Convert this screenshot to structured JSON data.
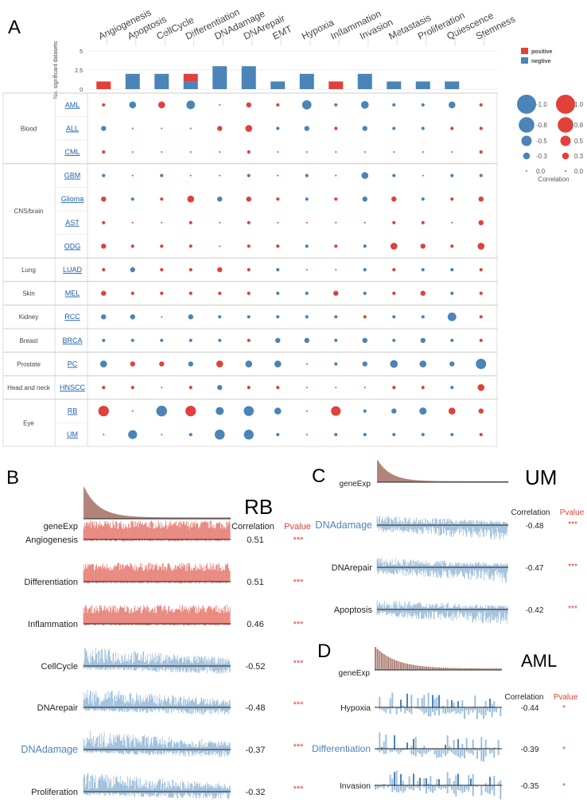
{
  "panel_letters": {
    "A": "A",
    "B": "B",
    "C": "C",
    "D": "D"
  },
  "colors": {
    "positive": "#e0413a",
    "negative": "#4a84b8",
    "positive_light": "#e8867c",
    "negative_light": "#9fbfdb",
    "gene_exp": "#b08478",
    "link": "#1a5fb4"
  },
  "chart_data": [
    {
      "panel": "A",
      "type": "bar",
      "ylabel": "No. significant datasets",
      "yticks": [
        0,
        2.5,
        5
      ],
      "ylim": [
        0,
        5
      ],
      "categories": [
        "Angiogenesis",
        "Apoptosis",
        "CellCycle",
        "Differentiation",
        "DNAdamage",
        "DNArepair",
        "EMT",
        "Hypoxia",
        "Inflammation",
        "Invasion",
        "Metastasis",
        "Proliferation",
        "Quiescence",
        "Stemness"
      ],
      "series": [
        {
          "name": "positive",
          "values": [
            1,
            0,
            0,
            1,
            0,
            0,
            0,
            0,
            1,
            0,
            0,
            0,
            0,
            0
          ]
        },
        {
          "name": "negtive",
          "values": [
            0,
            2,
            2,
            1,
            3,
            3,
            1,
            2,
            0,
            2,
            1,
            1,
            1,
            0
          ]
        }
      ],
      "legend_position": "top-right"
    },
    {
      "panel": "A",
      "type": "scatter",
      "subtype": "bubble",
      "columns": [
        "Angiogenesis",
        "Apoptosis",
        "CellCycle",
        "Differentiation",
        "DNAdamage",
        "DNArepair",
        "EMT",
        "Hypoxia",
        "Inflammation",
        "Invasion",
        "Metastasis",
        "Proliferation",
        "Quiescence",
        "Stemness"
      ],
      "groups": [
        {
          "label": "Blood",
          "rows": [
            "AML",
            "ALL",
            "CML"
          ]
        },
        {
          "label": "CNS/brain",
          "rows": [
            "GBM",
            "Glioma",
            "AST",
            "ODG"
          ]
        },
        {
          "label": "Lung",
          "rows": [
            "LUAD"
          ]
        },
        {
          "label": "Skin",
          "rows": [
            "MEL"
          ]
        },
        {
          "label": "Kidney",
          "rows": [
            "RCC"
          ]
        },
        {
          "label": "Breast",
          "rows": [
            "BRCA"
          ]
        },
        {
          "label": "Prostate",
          "rows": [
            "PC"
          ]
        },
        {
          "label": "Head and neck",
          "rows": [
            "HNSCC"
          ]
        },
        {
          "label": "Eye",
          "rows": [
            "RB",
            "UM"
          ]
        }
      ],
      "rows": [
        "AML",
        "ALL",
        "CML",
        "GBM",
        "Glioma",
        "AST",
        "ODG",
        "LUAD",
        "MEL",
        "RCC",
        "BRCA",
        "PC",
        "HNSCC",
        "RB",
        "UM"
      ],
      "values": [
        [
          0.1,
          -0.3,
          0.3,
          -0.4,
          0.0,
          0.2,
          0.1,
          -0.44,
          -0.1,
          -0.35,
          -0.1,
          -0.1,
          -0.3,
          0.1
        ],
        [
          -0.2,
          0.0,
          0.0,
          0.0,
          0.2,
          0.3,
          -0.1,
          -0.2,
          0.1,
          -0.2,
          -0.1,
          -0.1,
          0.1,
          0.1
        ],
        [
          0.1,
          0.0,
          0.0,
          0.0,
          0.0,
          0.1,
          0.0,
          0.0,
          0.0,
          0.0,
          0.0,
          0.0,
          0.0,
          0.1
        ],
        [
          -0.1,
          0.0,
          -0.1,
          0.0,
          0.0,
          -0.1,
          0.0,
          -0.1,
          0.0,
          -0.3,
          -0.1,
          0.0,
          -0.1,
          -0.1
        ],
        [
          0.2,
          -0.1,
          0.1,
          0.3,
          -0.2,
          0.2,
          0.1,
          -0.1,
          0.1,
          -0.2,
          0.2,
          -0.1,
          0.1,
          0.2
        ],
        [
          0.1,
          0.0,
          0.0,
          0.1,
          0.0,
          0.1,
          0.0,
          0.0,
          0.0,
          0.0,
          0.1,
          0.1,
          0.0,
          0.2
        ],
        [
          0.2,
          0.1,
          0.1,
          0.1,
          0.0,
          0.1,
          0.1,
          -0.1,
          0.1,
          -0.1,
          0.3,
          0.2,
          0.1,
          0.3
        ],
        [
          0.1,
          -0.2,
          0.1,
          0.1,
          0.2,
          0.1,
          -0.1,
          0.0,
          0.0,
          -0.1,
          0.1,
          -0.1,
          -0.1,
          0.1
        ],
        [
          0.2,
          0.1,
          0.1,
          0.1,
          0.1,
          0.1,
          -0.1,
          -0.1,
          0.2,
          -0.1,
          0.1,
          0.2,
          -0.1,
          0.1
        ],
        [
          -0.2,
          -0.2,
          0.0,
          -0.2,
          -0.1,
          -0.1,
          -0.1,
          -0.1,
          -0.1,
          0.1,
          -0.1,
          -0.1,
          -0.4,
          0.1
        ],
        [
          -0.1,
          -0.1,
          -0.1,
          -0.1,
          -0.1,
          0.1,
          -0.2,
          -0.2,
          -0.1,
          -0.2,
          -0.1,
          -0.2,
          -0.1,
          0.1
        ],
        [
          -0.3,
          0.2,
          0.2,
          -0.2,
          0.3,
          -0.3,
          -0.3,
          0.0,
          -0.1,
          -0.2,
          -0.35,
          -0.3,
          -0.2,
          -0.5
        ],
        [
          0.1,
          0.1,
          0.0,
          0.1,
          -0.2,
          0.1,
          0.1,
          0.0,
          0.0,
          0.0,
          0.1,
          0.1,
          -0.1,
          0.3
        ],
        [
          0.51,
          0.0,
          -0.52,
          0.51,
          -0.37,
          -0.48,
          -0.3,
          0.0,
          0.46,
          -0.1,
          -0.2,
          -0.32,
          0.3,
          0.2
        ],
        [
          0.0,
          -0.42,
          0.0,
          -0.1,
          -0.48,
          -0.47,
          -0.1,
          0.0,
          -0.1,
          -0.1,
          -0.1,
          -0.1,
          -0.1,
          0.1
        ]
      ],
      "size_legend": {
        "title": "Correlation",
        "negative": [
          "-1.0",
          "-0.8",
          "-0.5",
          "-0.3",
          "0.0"
        ],
        "positive": [
          "1.0",
          "0.8",
          "0.5",
          "0.3",
          "0.0"
        ],
        "values": [
          1.0,
          0.8,
          0.5,
          0.3,
          0.0
        ]
      }
    },
    {
      "panel": "B",
      "type": "bar",
      "title": "RB",
      "col_headers": {
        "correlation": "Correlation",
        "pvalue": "Pvalue"
      },
      "gene_label": "geneExp",
      "rows": [
        {
          "label": "Angiogenesis",
          "correlation": "0.51",
          "pvalue": "***",
          "value": 0.51
        },
        {
          "label": "Differentiation",
          "correlation": "0.51",
          "pvalue": "***",
          "value": 0.51
        },
        {
          "label": "Inflammation",
          "correlation": "0.46",
          "pvalue": "***",
          "value": 0.46
        },
        {
          "label": "CellCycle",
          "correlation": "-0.52",
          "pvalue": "***",
          "value": -0.52
        },
        {
          "label": "DNArepair",
          "correlation": "-0.48",
          "pvalue": "***",
          "value": -0.48
        },
        {
          "label": "DNAdamage",
          "correlation": "-0.37",
          "pvalue": "***",
          "value": -0.37,
          "highlight": true
        },
        {
          "label": "Proliferation",
          "correlation": "-0.32",
          "pvalue": "***",
          "value": -0.32
        }
      ]
    },
    {
      "panel": "C",
      "type": "bar",
      "title": "UM",
      "col_headers": {
        "correlation": "Correlation",
        "pvalue": "Pvalue"
      },
      "gene_label": "geneExp",
      "rows": [
        {
          "label": "DNAdamage",
          "correlation": "-0.48",
          "pvalue": "***",
          "value": -0.48,
          "highlight": true
        },
        {
          "label": "DNArepair",
          "correlation": "-0.47",
          "pvalue": "***",
          "value": -0.47
        },
        {
          "label": "Apoptosis",
          "correlation": "-0.42",
          "pvalue": "***",
          "value": -0.42
        }
      ]
    },
    {
      "panel": "D",
      "type": "bar",
      "title": "AML",
      "col_headers": {
        "correlation": "Correlation",
        "pvalue": "Pvalue"
      },
      "gene_label": "geneExp",
      "rows": [
        {
          "label": "Hypoxia",
          "correlation": "-0.44",
          "pvalue": "*",
          "value": -0.44
        },
        {
          "label": "Differentiation",
          "correlation": "-0.39",
          "pvalue": "*",
          "value": -0.39,
          "highlight": true
        },
        {
          "label": "Invasion",
          "correlation": "-0.35",
          "pvalue": "*",
          "value": -0.35
        }
      ]
    }
  ]
}
